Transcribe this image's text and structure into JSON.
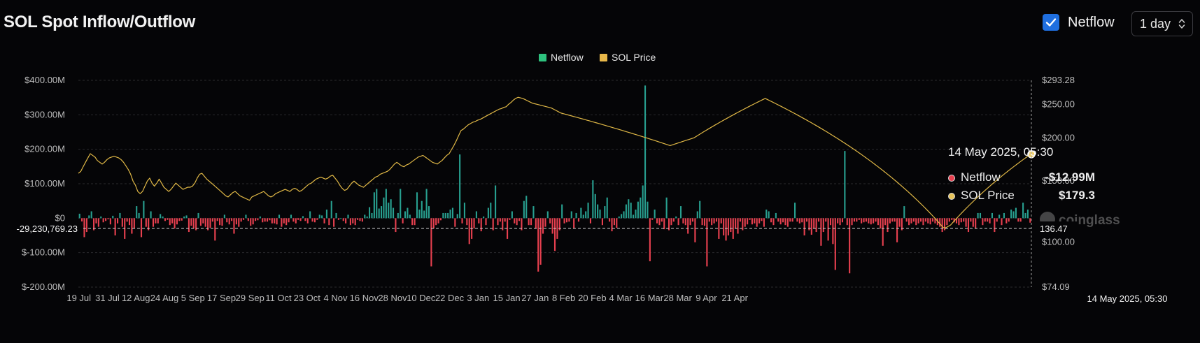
{
  "header": {
    "title": "SOL Spot Inflow/Outflow",
    "netflow_toggle_label": "Netflow",
    "netflow_checked": true,
    "interval_label": "1 day"
  },
  "watermark": "coinglass",
  "tooltip": {
    "date": "14 May 2025, 05:30",
    "netflow_label": "Netflow",
    "netflow_value": "-$12.99M",
    "price_label": "SOL Price",
    "price_value": "$179.3"
  },
  "crosshair": {
    "left_label": "-29,230,769.23",
    "right_label": "136.47",
    "bottom_label": "14 May 2025, 05:30"
  },
  "colors": {
    "background": "#050507",
    "inflow": "#28a090",
    "outflow": "#e8404f",
    "price": "#e0b846",
    "legend_netflow": "#2ec27e",
    "legend_price": "#e8b84a",
    "checkbox": "#1f6fe0"
  },
  "chart_data": {
    "type": "bar",
    "title": "SOL Spot Inflow/Outflow",
    "legend": [
      "Netflow",
      "SOL Price"
    ],
    "legend_position": "top-center",
    "grid": true,
    "y_left": {
      "ylim": [
        -200000000,
        400000000
      ],
      "ticks": [
        400000000,
        300000000,
        200000000,
        100000000,
        0,
        -100000000,
        -200000000
      ],
      "tick_labels": [
        "$400.00M",
        "$300.00M",
        "$200.00M",
        "$100.00M",
        "$0",
        "$-100.00M",
        "$-200.00M"
      ]
    },
    "y_right": {
      "scale": "log",
      "ylim": [
        74.09,
        293.28
      ],
      "tick_labels": [
        "$293.28",
        "$250.00",
        "$200.00",
        "$150.00",
        "$100.00",
        "$74.09"
      ],
      "ticks": [
        293.28,
        250,
        200,
        150,
        100,
        74.09
      ]
    },
    "x_labels": [
      "19 Jul",
      "31 Jul",
      "12 Aug",
      "24 Aug",
      "5 Sep",
      "17 Sep",
      "29 Sep",
      "11 Oct",
      "23 Oct",
      "4 Nov",
      "16 Nov",
      "28 Nov",
      "10 Dec",
      "22 Dec",
      "3 Jan",
      "15 Jan",
      "27 Jan",
      "8 Feb",
      "20 Feb",
      "4 Mar",
      "16 Mar",
      "28 Mar",
      "9 Apr",
      "21 Apr"
    ],
    "label_spacing_days": 12,
    "series": [
      {
        "name": "Netflow",
        "kind": "bar",
        "unit": "USD millions",
        "values": [
          13,
          -22,
          -55,
          -40,
          8,
          20,
          -35,
          -15,
          -25,
          5,
          -12,
          -8,
          -3,
          -18,
          7,
          -50,
          -15,
          15,
          -25,
          -60,
          -10,
          -20,
          -45,
          -30,
          35,
          15,
          -55,
          50,
          -25,
          -35,
          20,
          -25,
          -15,
          -15,
          12,
          5,
          -8,
          -5,
          -20,
          -15,
          -30,
          -18,
          -8,
          -7,
          5,
          8,
          -40,
          -22,
          -30,
          -35,
          15,
          -22,
          -15,
          -25,
          -35,
          -28,
          -10,
          -65,
          -8,
          -20,
          -22,
          10,
          -12,
          -18,
          -8,
          -45,
          -18,
          -25,
          -10,
          -5,
          10,
          -8,
          -22,
          -18,
          -8,
          -6,
          5,
          -12,
          -10,
          -10,
          -6,
          -15,
          -15,
          -18,
          10,
          -25,
          -15,
          -20,
          -12,
          10,
          -10,
          -15,
          -5,
          -8,
          6,
          -8,
          -15,
          20,
          -10,
          -12,
          -5,
          10,
          8,
          -15,
          25,
          -20,
          50,
          -25,
          15,
          -5,
          0,
          -8,
          -15,
          10,
          -20,
          -15,
          -20,
          -5,
          -8,
          -10,
          10,
          5,
          32,
          15,
          75,
          85,
          28,
          35,
          60,
          85,
          45,
          55,
          30,
          -40,
          15,
          85,
          -15,
          20,
          30,
          10,
          -20,
          -20,
          75,
          25,
          50,
          22,
          85,
          35,
          -140,
          -30,
          -20,
          -15,
          -6,
          15,
          15,
          15,
          25,
          30,
          -25,
          12,
          185,
          -15,
          45,
          -20,
          -75,
          -60,
          -30,
          20,
          -15,
          -38,
          5,
          -20,
          30,
          45,
          -35,
          95,
          -20,
          -10,
          -35,
          -10,
          -60,
          -5,
          20,
          -15,
          -20,
          -8,
          -35,
          50,
          65,
          -20,
          -20,
          35,
          -30,
          -155,
          -135,
          -45,
          -25,
          20,
          -15,
          -45,
          -95,
          -60,
          -35,
          40,
          -15,
          -12,
          -10,
          20,
          -30,
          15,
          -10,
          30,
          10,
          20,
          45,
          -15,
          110,
          70,
          40,
          25,
          -20,
          35,
          60,
          -10,
          -38,
          -20,
          -28,
          5,
          12,
          20,
          40,
          55,
          45,
          10,
          25,
          48,
          60,
          95,
          385,
          48,
          -125,
          -5,
          25,
          -15,
          -20,
          -10,
          -32,
          60,
          -35,
          -20,
          -10,
          5,
          -20,
          35,
          -15,
          -20,
          -45,
          -20,
          -10,
          -70,
          20,
          50,
          -20,
          -22,
          -140,
          -10,
          -20,
          -15,
          -10,
          -60,
          -15,
          -50,
          -65,
          -50,
          -40,
          -60,
          -30,
          -45,
          -10,
          -35,
          -25,
          -18,
          -5,
          -18,
          -15,
          -25,
          -15,
          -8,
          -25,
          25,
          20,
          -12,
          -20,
          15,
          -10,
          -18,
          -12,
          -20,
          -25,
          -10,
          -10,
          45,
          -10,
          -15,
          -12,
          -50,
          -10,
          -35,
          -48,
          -30,
          -40,
          -10,
          -80,
          -40,
          -10,
          -65,
          -20,
          -75,
          -150,
          -15,
          -20,
          -12,
          195,
          -20,
          -160,
          -20,
          -10,
          -10,
          -5,
          -15,
          -12,
          -10,
          -15,
          -18,
          -15,
          -10,
          -20,
          -30,
          -80,
          -20,
          -40,
          -15,
          -10,
          -10,
          -70,
          -25,
          -35,
          35,
          -10,
          -20,
          -15,
          -10,
          -20,
          -15,
          -10,
          -20,
          -10,
          -15,
          -18,
          -10,
          -15,
          -20,
          -25,
          -40,
          -35,
          -20,
          -10,
          -5,
          -12,
          -15,
          -20,
          -12,
          -10,
          -25,
          -40,
          -10,
          -25,
          -30,
          15,
          15,
          -20,
          -10,
          -10,
          -15,
          15,
          -40,
          -10,
          10,
          -20,
          15,
          -15,
          -10,
          25,
          20,
          30,
          -10,
          -10,
          45,
          15,
          25,
          -12.99
        ]
      },
      {
        "name": "SOL Price",
        "kind": "line",
        "unit": "USD",
        "values": [
          158,
          160,
          165,
          170,
          175,
          180,
          178,
          176,
          172,
          170,
          168,
          170,
          173,
          175,
          176,
          177,
          176,
          175,
          173,
          170,
          166,
          162,
          157,
          150,
          146,
          140,
          138,
          140,
          145,
          150,
          153,
          148,
          145,
          148,
          152,
          148,
          144,
          142,
          140,
          142,
          145,
          148,
          146,
          144,
          142,
          143,
          144,
          144,
          145,
          148,
          153,
          157,
          158,
          155,
          152,
          150,
          148,
          146,
          144,
          142,
          140,
          138,
          136,
          135,
          137,
          139,
          140,
          138,
          136,
          135,
          134,
          133,
          132,
          135,
          136,
          137,
          138,
          139,
          140,
          138,
          136,
          135,
          136,
          138,
          139,
          140,
          141,
          142,
          141,
          140,
          142,
          143,
          142,
          140,
          141,
          143,
          145,
          147,
          148,
          150,
          152,
          153,
          154,
          153,
          152,
          153,
          155,
          156,
          153,
          150,
          146,
          143,
          141,
          142,
          145,
          148,
          150,
          148,
          146,
          145,
          144,
          146,
          148,
          150,
          152,
          154,
          155,
          157,
          158,
          159,
          160,
          162,
          165,
          168,
          170,
          168,
          166,
          165,
          167,
          168,
          170,
          172,
          174,
          176,
          177,
          178,
          176,
          174,
          172,
          170,
          169,
          168,
          170,
          172,
          175,
          178,
          180,
          185,
          190,
          196,
          203,
          210,
          212,
          215,
          218,
          220,
          222,
          223,
          225,
          226,
          228,
          230,
          232,
          234,
          236,
          238,
          240,
          242,
          243,
          245,
          246,
          250,
          253,
          257,
          260,
          262,
          261,
          260,
          258,
          256,
          254,
          252,
          251,
          250,
          249,
          248,
          247,
          246,
          245,
          244,
          242,
          240,
          238,
          236,
          235,
          234,
          233,
          232,
          231,
          230,
          229,
          228,
          227,
          226,
          225,
          224,
          223,
          222,
          221,
          220,
          219,
          218,
          217,
          216,
          215,
          214,
          213,
          212,
          211,
          210,
          209,
          208,
          207,
          206,
          205,
          204,
          203,
          202,
          201,
          200,
          199,
          198,
          197,
          196,
          195,
          194,
          193,
          192,
          191,
          190,
          191,
          192,
          193,
          194,
          195,
          196,
          197,
          198,
          199,
          200,
          202,
          204,
          206,
          208,
          210,
          212,
          214,
          216,
          218,
          220,
          222,
          224,
          226,
          228,
          230,
          232,
          234,
          236,
          238,
          240,
          242,
          244,
          246,
          248,
          250,
          252,
          254,
          256,
          258,
          260,
          258,
          256,
          254,
          252,
          250,
          248,
          246,
          244,
          242,
          240,
          238,
          236,
          234,
          232,
          230,
          228,
          226,
          224,
          222,
          220,
          218,
          216,
          214,
          212,
          210,
          208,
          206,
          204,
          202,
          200,
          198,
          196,
          194,
          192,
          190,
          188,
          186,
          184,
          182,
          180,
          178,
          176,
          174,
          172,
          170,
          168,
          166,
          164,
          162,
          160,
          158,
          156,
          154,
          152,
          150,
          148,
          146,
          144,
          142,
          140,
          138,
          136,
          134,
          132,
          130,
          128,
          126,
          124,
          122,
          120,
          118,
          116,
          114,
          112,
          110,
          110,
          111,
          112,
          114,
          116,
          118,
          120,
          122,
          124,
          126,
          128,
          130,
          132,
          134,
          136,
          138,
          140,
          142,
          144,
          146,
          148,
          150,
          152,
          154,
          156,
          158,
          160,
          162,
          164,
          166,
          168,
          170,
          172,
          174,
          176,
          178,
          179.3
        ]
      }
    ]
  }
}
